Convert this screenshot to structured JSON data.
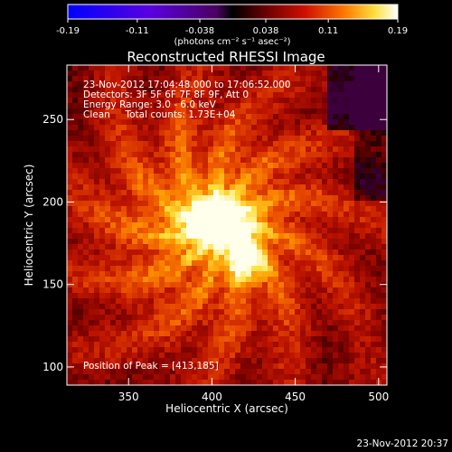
{
  "chart_data": {
    "type": "heatmap",
    "title": "Reconstructed RHESSI Image",
    "xlabel": "Heliocentric X (arcsec)",
    "ylabel": "Heliocentric Y (arcsec)",
    "xlim": [
      313,
      505
    ],
    "ylim": [
      89,
      283
    ],
    "x_ticks": [
      350,
      400,
      450,
      500
    ],
    "y_ticks": [
      100,
      150,
      200,
      250
    ],
    "colorbar": {
      "min": -0.19,
      "max": 0.19,
      "tick_values": [
        -0.19,
        -0.11,
        -0.038,
        0.038,
        0.11,
        0.19
      ],
      "tick_labels": [
        "-0.19",
        "-0.11",
        "-0.038",
        "0.038",
        "0.11",
        "0.19"
      ],
      "unit_label": "(photons cm⁻² s⁻¹ asec⁻²)"
    },
    "annotations": {
      "line1": "23-Nov-2012 17:04:48.000 to 17:06:52.000",
      "line2": "Detectors: 3F 5F 6F 7F 8F 9F, Att 0",
      "line3": "Energy Range: 3.0 - 6.0 keV",
      "line4": "Clean     Total counts: 1.73E+04",
      "peak": "Position of Peak = [413,185]"
    },
    "peak": {
      "x": 413,
      "y": 185
    },
    "timestamp": "23-Nov-2012 20:37"
  }
}
